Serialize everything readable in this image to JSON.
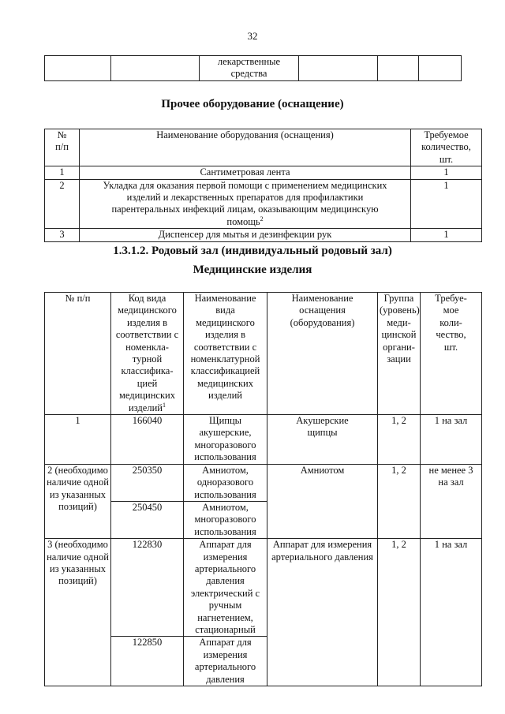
{
  "page_number": "32",
  "top_table": {
    "cell": "лекарственные средства"
  },
  "section1": {
    "title": "Прочее оборудование (оснащение)",
    "headers": [
      "№ п/п",
      "Наименование оборудования (оснащения)",
      "Требуемое количество, шт."
    ],
    "rows": [
      {
        "num": "1",
        "name": "Сантиметровая лента",
        "qty": "1"
      },
      {
        "num": "2",
        "name": "Укладка для оказания первой помощи с применением медицинских изделий и лекарственных препаратов для профилактики парентеральных инфекций лицам, оказывающим медицинскую помощь",
        "sup": "2",
        "qty": "1"
      },
      {
        "num": "3",
        "name": "Диспенсер для мытья и дезинфекции рук",
        "qty": "1"
      }
    ]
  },
  "section2": {
    "title": "1.3.1.2. Родовый зал (индивидуальный родовый зал)",
    "subtitle": "Медицинские изделия",
    "headers": [
      "№ п/п",
      "Код вида медицинского изделия в соответствии с номенкла-турной классифика-цией медицинских изделий",
      "Наименование вида медицинского изделия в соответствии с номенклатурной классификацией медицинских изделий",
      "Наименование оснащения (оборудования)",
      "Группа (уровень) меди-цинской органи-зации",
      "Требуе-мое коли-чество, шт."
    ],
    "header_sup": "1",
    "rows": [
      {
        "num": "1",
        "items": [
          {
            "code": "166040",
            "kind": "Щипцы акушерские, многоразового использования"
          }
        ],
        "equipment": "Акушерские щипцы",
        "group": "1, 2",
        "qty": "1 на зал"
      },
      {
        "num": "2 (необходимо наличие одной из указанных позиций)",
        "items": [
          {
            "code": "250350",
            "kind": "Амниотом, одноразового использования"
          },
          {
            "code": "250450",
            "kind": "Амниотом, многоразового использования"
          }
        ],
        "equipment": "Амниотом",
        "group": "1, 2",
        "qty": "не менее 3 на зал"
      },
      {
        "num": "3 (необходимо наличие одной из указанных позиций)",
        "items": [
          {
            "code": "122830",
            "kind": "Аппарат для измерения артериального давления электрический с ручным нагнетением, стационарный"
          },
          {
            "code": "122850",
            "kind": "Аппарат для измерения артериального давления"
          }
        ],
        "equipment": "Аппарат для измерения артериального давления",
        "group": "1, 2",
        "qty": "1 на зал"
      }
    ]
  }
}
